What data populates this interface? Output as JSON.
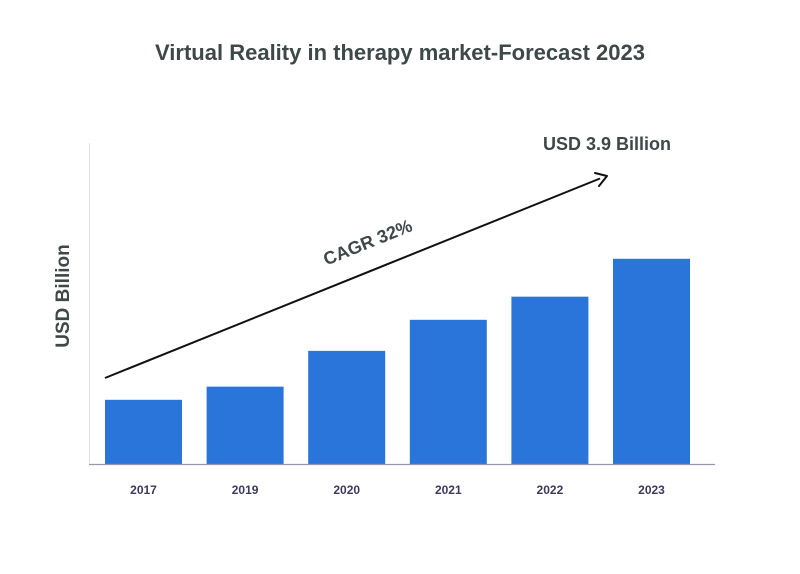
{
  "chart_data": {
    "type": "bar",
    "title": "Virtual Reality in therapy market-Forecast 2023",
    "xlabel": "",
    "ylabel": "USD Billion",
    "categories": [
      "2017",
      "2019",
      "2020",
      "2021",
      "2022",
      "2023"
    ],
    "values": [
      1.22,
      1.47,
      2.15,
      2.74,
      3.18,
      3.9
    ],
    "ylim": [
      0,
      6.1
    ],
    "grid": false,
    "bar_color": "#2a75d9",
    "annotations": {
      "cagr": "CAGR 32%",
      "end_value": "USD 3.9 Billion"
    }
  }
}
